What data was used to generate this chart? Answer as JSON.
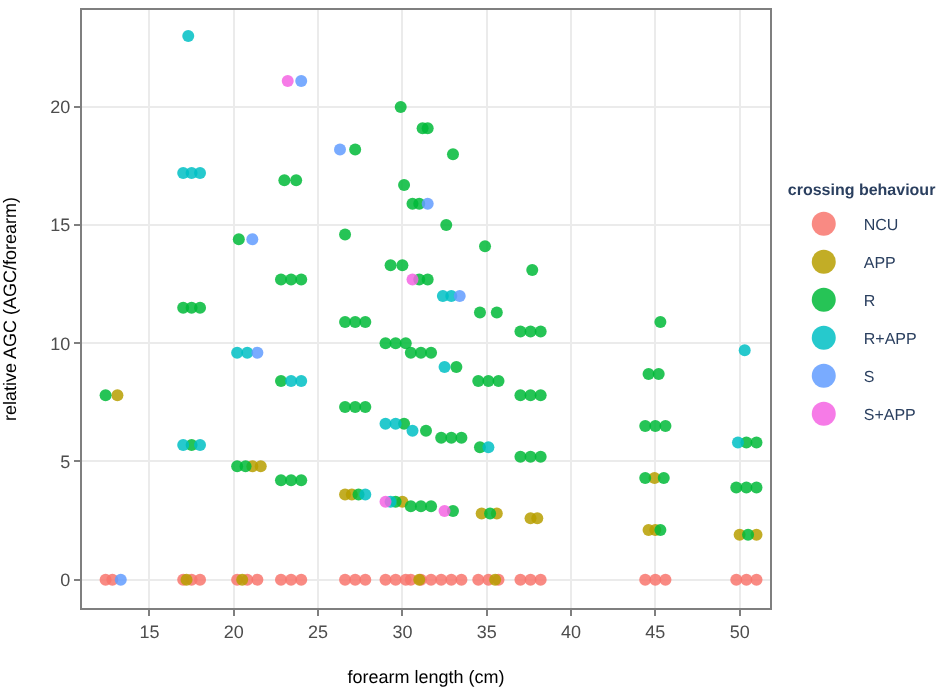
{
  "chart_data": {
    "type": "scatter",
    "xlabel": "forearm length (cm)",
    "ylabel": "relative AGC (AGC/forearm)",
    "legend_title": "crossing behaviour",
    "legend": "right",
    "grid": true,
    "marker": "circle",
    "xlim": [
      11,
      51.8
    ],
    "ylim": [
      -1.2,
      24.1
    ],
    "xticks": [
      15,
      20,
      25,
      30,
      35,
      40,
      45,
      50
    ],
    "yticks": [
      0,
      5,
      10,
      15,
      20
    ],
    "series": [
      {
        "name": "NCU",
        "color": "#f8766d",
        "x": [
          12.4,
          12.8,
          17.0,
          17.5,
          18.0,
          20.2,
          20.8,
          21.4,
          22.8,
          23.4,
          24.0,
          26.6,
          27.2,
          27.8,
          29.0,
          29.6,
          30.2,
          30.5,
          31.1,
          31.7,
          32.3,
          32.9,
          33.5,
          34.5,
          35.1,
          35.7,
          37.0,
          37.6,
          38.2,
          44.4,
          45.0,
          45.6,
          49.8,
          50.4,
          51.0
        ],
        "values": [
          0,
          0,
          0,
          0,
          0,
          0,
          0,
          0,
          0,
          0,
          0,
          0,
          0,
          0,
          0,
          0,
          0,
          0,
          0,
          0,
          0,
          0,
          0,
          0,
          0,
          0,
          0,
          0,
          0,
          0,
          0,
          0,
          0,
          0,
          0
        ]
      },
      {
        "name": "APP",
        "color": "#b79f00",
        "x": [
          13.1,
          17.2,
          20.5,
          21.1,
          21.6,
          26.6,
          27.0,
          30.0,
          31.0,
          34.7,
          35.5,
          35.6,
          37.6,
          38.0,
          44.6,
          45.0,
          44.95,
          50.0,
          51.0
        ],
        "values": [
          7.8,
          0,
          0,
          4.8,
          4.8,
          3.6,
          3.6,
          3.3,
          0,
          2.8,
          0,
          2.8,
          2.6,
          2.6,
          2.1,
          2.1,
          4.3,
          1.9,
          1.9
        ]
      },
      {
        "name": "R",
        "color": "#00ba38",
        "x": [
          12.4,
          17.0,
          17.5,
          18.0,
          17.5,
          20.3,
          20.2,
          20.7,
          23.0,
          23.7,
          22.8,
          23.4,
          24.0,
          22.8,
          23.4,
          24.0,
          22.8,
          27.2,
          26.6,
          26.6,
          27.2,
          27.8,
          26.6,
          27.2,
          27.8,
          27.4,
          29.9,
          30.1,
          29.3,
          30.0,
          29.0,
          29.6,
          30.2,
          30.1,
          29.6,
          31.2,
          31.5,
          30.6,
          31.0,
          31.0,
          31.5,
          30.5,
          31.1,
          31.7,
          31.4,
          30.5,
          31.1,
          31.7,
          33.0,
          32.6,
          33.2,
          32.3,
          32.9,
          33.5,
          33.0,
          34.9,
          34.6,
          35.6,
          34.5,
          35.1,
          35.7,
          34.6,
          35.2,
          37.7,
          37.0,
          37.6,
          38.2,
          37.0,
          37.6,
          38.2,
          37.0,
          37.6,
          38.2,
          45.3,
          44.6,
          45.2,
          44.4,
          45.0,
          45.6,
          44.4,
          45.5,
          45.3,
          50.4,
          51.0,
          49.8,
          50.4,
          51.0,
          50.5
        ],
        "values": [
          7.8,
          11.5,
          11.5,
          11.5,
          5.7,
          14.4,
          4.8,
          4.8,
          16.9,
          16.9,
          12.7,
          12.7,
          12.7,
          4.2,
          4.2,
          4.2,
          8.4,
          18.2,
          14.6,
          10.9,
          10.9,
          10.9,
          7.3,
          7.3,
          7.3,
          3.6,
          20.0,
          16.7,
          13.3,
          13.3,
          10.0,
          10.0,
          10.0,
          6.6,
          3.3,
          19.1,
          19.1,
          15.9,
          15.9,
          12.7,
          12.7,
          9.6,
          9.6,
          9.6,
          6.3,
          3.1,
          3.1,
          3.1,
          18.0,
          15.0,
          9.0,
          6.0,
          6.0,
          6.0,
          2.9,
          14.1,
          11.3,
          11.3,
          8.4,
          8.4,
          8.4,
          5.6,
          2.8,
          13.1,
          10.5,
          10.5,
          10.5,
          7.8,
          7.8,
          7.8,
          5.2,
          5.2,
          5.2,
          10.9,
          8.7,
          8.7,
          6.5,
          6.5,
          6.5,
          4.3,
          4.3,
          2.1,
          5.8,
          5.8,
          3.9,
          3.9,
          3.9,
          1.9
        ]
      },
      {
        "name": "R+APP",
        "color": "#00bfc4",
        "x": [
          17.3,
          17.0,
          17.5,
          18.0,
          17.0,
          18.0,
          20.2,
          20.8,
          23.4,
          24.0,
          27.8,
          29.0,
          29.6,
          29.3,
          30.6,
          32.4,
          32.9,
          32.5,
          35.1,
          50.3,
          49.9
        ],
        "values": [
          23.0,
          17.2,
          17.2,
          17.2,
          5.7,
          5.7,
          9.6,
          9.6,
          8.4,
          8.4,
          3.6,
          6.6,
          6.6,
          3.3,
          6.3,
          12.0,
          12.0,
          9.0,
          5.6,
          9.7,
          5.8
        ]
      },
      {
        "name": "S",
        "color": "#619cff",
        "x": [
          13.3,
          21.1,
          21.4,
          24.0,
          26.3,
          31.5,
          33.4
        ],
        "values": [
          0,
          14.4,
          9.6,
          21.1,
          18.2,
          15.9,
          12.0
        ]
      },
      {
        "name": "S+APP",
        "color": "#f564e3",
        "x": [
          23.2,
          29.0,
          30.6,
          32.5
        ],
        "values": [
          21.1,
          3.3,
          12.7,
          2.9
        ]
      }
    ]
  }
}
